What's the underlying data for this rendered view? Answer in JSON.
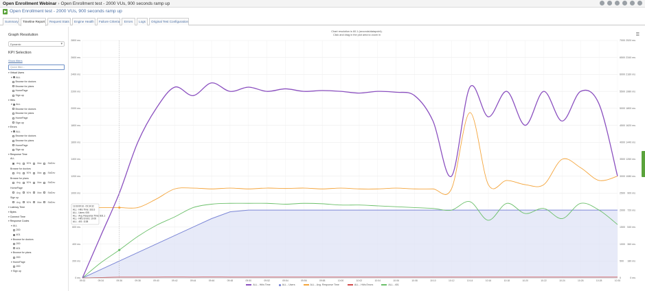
{
  "topbar": {
    "project": "Open Enrollment Webinar",
    "test": "Open Enrollment test - 2000 VUs, 900 seconds ramp up"
  },
  "title": "Open Enrollment test - 2000 VUs, 900 seconds ramp up",
  "tabs": [
    {
      "label": "Summary"
    },
    {
      "label": "Timeline Report"
    },
    {
      "label": "Request Stats"
    },
    {
      "label": "Engine Health"
    },
    {
      "label": "Failure Criteria"
    },
    {
      "label": "Errors"
    },
    {
      "label": "Logs"
    },
    {
      "label": "Original Test Configuration"
    }
  ],
  "sidebar": {
    "graph_resolution": "Graph Resolution",
    "resolution_value": "Dynamic",
    "kpi_selection": "KPI Selection",
    "show_filters": "Show filters",
    "quick_filter_placeholder": "Quick filter...",
    "groups": [
      {
        "label": "Virtual Users",
        "items": [
          "ALL",
          "Browse for doctors",
          "Browse for plans",
          "HomePage",
          "Sign up"
        ]
      },
      {
        "label": "Hit/s",
        "items": [
          "ALL",
          "Browse for doctors",
          "Browse for plans",
          "HomePage",
          "Sign up"
        ]
      },
      {
        "label": "Errors",
        "items": [
          "ALL",
          "Browse for doctors",
          "Browse for plans",
          "HomePage",
          "Sign up"
        ]
      }
    ],
    "response_time": {
      "label": "Response Time",
      "subgroups": [
        "ALL",
        "Browse for doctors",
        "Browse for plans",
        "HomePage",
        "Sign up"
      ],
      "options": [
        "Avg",
        "90%",
        "Max",
        "StdDev"
      ]
    },
    "latency_time": "Latency Time",
    "bytes": "Bytes",
    "connect_time": "Connect Time",
    "response_codes": {
      "label": "Response Codes",
      "subgroups": [
        {
          "label": "ALL",
          "codes": [
            "200",
            "401"
          ]
        },
        {
          "label": "Browse for doctors",
          "codes": [
            "200",
            "401"
          ]
        },
        {
          "label": "Browse for plans",
          "codes": [
            "200"
          ]
        },
        {
          "label": "HomePage",
          "codes": [
            "200"
          ]
        },
        {
          "label": "Sign up",
          "codes": []
        }
      ]
    }
  },
  "chart_note": [
    "Chart resolution is 60.1 (seconds/datapoint).",
    "Click and drag in the plot area to zoom in"
  ],
  "tooltip": {
    "time": "11/30/2018 - 09:34:32",
    "lines": [
      "ALL - Hit/s Time: 333.3",
      "ALL - Users: 005",
      "ALL - Avg. Response Time: 831.1",
      "ALL - Hit/s Errors: 10.06",
      "ALL - 401: 1138"
    ]
  },
  "colors": {
    "users": "#7b86d6",
    "users_fill": "#dfe3f5",
    "hits": "#8a4fbf",
    "response": "#f4a43a",
    "errors": "#d24a4a",
    "code401": "#6abf69"
  },
  "legend": [
    {
      "label": "ALL - Hit/s Time",
      "color": "#8a4fbf",
      "kind": "line"
    },
    {
      "label": "ALL - Users",
      "color": "#7b86d6",
      "kind": "box"
    },
    {
      "label": "ALL - Avg. Response Time",
      "color": "#f4a43a",
      "kind": "line"
    },
    {
      "label": "ALL - Hit/s Errors",
      "color": "#d24a4a",
      "kind": "line"
    },
    {
      "label": "ALL - 401",
      "color": "#6abf69",
      "kind": "line"
    }
  ],
  "chart_data": {
    "type": "line",
    "x": [
      "09:32",
      "09:34",
      "09:36",
      "09:38",
      "09:40",
      "09:42",
      "09:44",
      "09:46",
      "09:48",
      "09:50",
      "09:52",
      "09:54",
      "09:56",
      "09:58",
      "10:00",
      "10:02",
      "10:04",
      "10:06",
      "10:08",
      "10:10",
      "10:12",
      "10:14",
      "10:16",
      "10:18",
      "10:20",
      "10:22",
      "10:24",
      "10:26",
      "10:28",
      "10:30"
    ],
    "left_axis": {
      "ticks": [
        "0 ms",
        "200 ms",
        "400 ms",
        "600 ms",
        "800 ms",
        "1000 ms",
        "1200 ms",
        "1400 ms",
        "1600 ms",
        "1800 ms",
        "2000 ms",
        "2200 ms",
        "2400 ms",
        "2600 ms",
        "2800 ms"
      ],
      "range": [
        0,
        2800
      ]
    },
    "right_axis_1": {
      "ticks": [
        "0",
        "500",
        "1000",
        "1500",
        "2000",
        "2500",
        "3000",
        "3500",
        "4000",
        "4500",
        "5000",
        "5500",
        "6000",
        "6500",
        "7000"
      ],
      "range": [
        0,
        7000
      ]
    },
    "right_axis_2": {
      "ticks": [
        "0 ms",
        "180 ms",
        "360 ms",
        "540 ms",
        "720 ms",
        "900 ms",
        "1080 ms",
        "1260 ms",
        "1440 ms",
        "1620 ms",
        "1800 ms",
        "1980 ms",
        "2160 ms",
        "2340 ms",
        "2520 ms"
      ],
      "range": [
        0,
        2520
      ]
    },
    "series": [
      {
        "name": "ALL - Users",
        "axis": "right_axis_1",
        "values": [
          0,
          250,
          500,
          750,
          1000,
          1250,
          1500,
          1750,
          1950,
          2000,
          2000,
          2000,
          2000,
          2000,
          2000,
          2000,
          2000,
          2000,
          2000,
          2000,
          2000,
          2000,
          2000,
          2000,
          2000,
          2000,
          2000,
          2000,
          2000,
          2000
        ]
      },
      {
        "name": "ALL - Hit/s Time",
        "axis": "left_axis",
        "values": [
          0,
          500,
          1000,
          1600,
          2000,
          2250,
          2150,
          2300,
          2200,
          2250,
          2200,
          2230,
          2200,
          2210,
          2200,
          2180,
          2200,
          2190,
          2150,
          1850,
          1200,
          2250,
          1900,
          2200,
          1800,
          2200,
          1850,
          2200,
          2050,
          1200
        ]
      },
      {
        "name": "ALL - Avg. Response Time",
        "axis": "left_axis",
        "values": [
          830,
          830,
          830,
          830,
          930,
          1050,
          1060,
          1050,
          1060,
          1050,
          1060,
          1055,
          1060,
          1050,
          1060,
          1050,
          1050,
          1060,
          1050,
          1050,
          1050,
          1950,
          1100,
          1150,
          1100,
          1100,
          1400,
          1300,
          1150,
          1200
        ]
      },
      {
        "name": "ALL - 401",
        "axis": "left_axis",
        "values": [
          0,
          180,
          330,
          490,
          620,
          720,
          830,
          870,
          880,
          880,
          880,
          870,
          880,
          875,
          860,
          860,
          850,
          840,
          830,
          820,
          800,
          900,
          680,
          880,
          760,
          820,
          700,
          880,
          800,
          630
        ]
      },
      {
        "name": "ALL - Hit/s Errors",
        "axis": "left_axis",
        "values": [
          0,
          5,
          10,
          10,
          10,
          12,
          10,
          12,
          10,
          10,
          10,
          10,
          10,
          10,
          10,
          10,
          10,
          10,
          10,
          10,
          10,
          10,
          10,
          10,
          10,
          10,
          10,
          10,
          10,
          10
        ]
      }
    ]
  }
}
